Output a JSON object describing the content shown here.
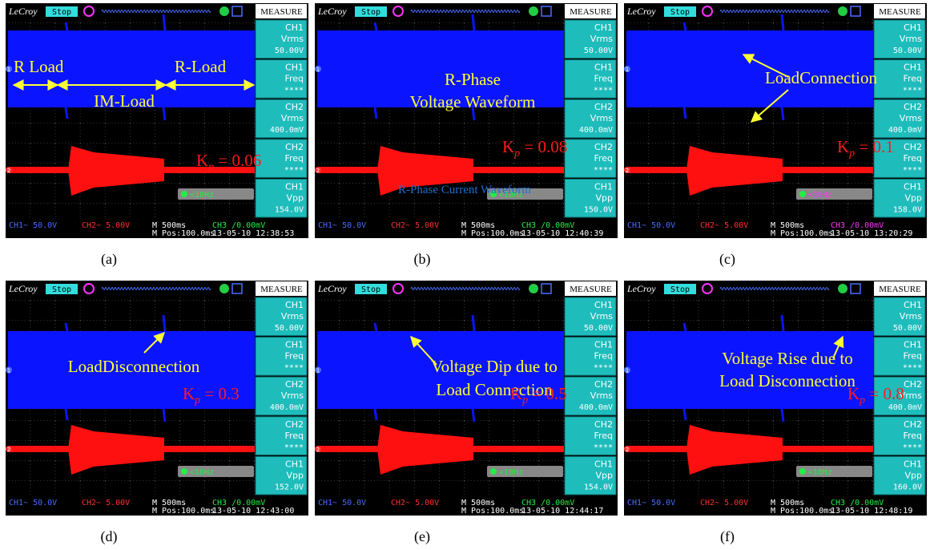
{
  "common": {
    "brand": "LeCroy",
    "status": "Stop",
    "menu": "MEASURE",
    "ch_markers": [
      "1",
      "2"
    ],
    "trigger": "<10Hz",
    "measure_labels": [
      [
        "CH1",
        "Vrms"
      ],
      [
        "CH1",
        "Freq"
      ],
      [
        "CH2",
        "Vrms"
      ],
      [
        "CH2",
        "Freq"
      ],
      [
        "CH1",
        "Vpp"
      ]
    ],
    "footer": {
      "ch1": "CH1~ 50.0V",
      "ch2": "CH2~ 5.00V",
      "timebase": "M 500ms",
      "position": "M Pos:100.0ms",
      "ch3": "CH3 /0.00mV"
    }
  },
  "panels": [
    {
      "caption": "(a)",
      "measures": [
        "50.00V",
        "****",
        "400.0mV",
        "****",
        "154.0V"
      ],
      "timestamp": "13-05-10 12:38:53",
      "labels": [
        "R Load",
        "IM-Load",
        "R-Load"
      ],
      "gain": {
        "k": "K",
        "sub": "p",
        "rest": " = 0.06"
      }
    },
    {
      "caption": "(b)",
      "measures": [
        "50.00V",
        "****",
        "400.0mV",
        "****",
        "150.0V"
      ],
      "timestamp": "13-05-10 12:40:39",
      "labels": [
        "R-Phase",
        "Voltage Waveform",
        "R-Phase Current Waveform"
      ],
      "gain": {
        "k": "K",
        "sub": "p",
        "rest": " = 0.08"
      }
    },
    {
      "caption": "(c)",
      "measures": [
        "50.00V",
        "****",
        "400.0mV",
        "****",
        "158.0V"
      ],
      "timestamp": "13-05-10 13:20:29",
      "labels": [
        "LoadConnection"
      ],
      "gain": {
        "k": "K",
        "sub": "p",
        "rest": " = 0.1"
      }
    },
    {
      "caption": "(d)",
      "measures": [
        "50.00V",
        "****",
        "400.0mV",
        "****",
        "152.0V"
      ],
      "timestamp": "13-05-10 12:43:00",
      "labels": [
        "LoadDisconnection"
      ],
      "gain": {
        "k": "K",
        "sub": "p",
        "rest": " = 0.3"
      }
    },
    {
      "caption": "(e)",
      "measures": [
        "50.00V",
        "****",
        "400.0mV",
        "****",
        "154.0V"
      ],
      "timestamp": "13-05-10 12:44:17",
      "labels": [
        "Voltage Dip due to",
        "Load Connection"
      ],
      "gain": {
        "k": "K",
        "sub": "p",
        "rest": " = 0.5"
      }
    },
    {
      "caption": "(f)",
      "measures": [
        "50.00V",
        "****",
        "400.0mV",
        "****",
        "160.0V"
      ],
      "timestamp": "13-05-10 12:48:19",
      "labels": [
        "Voltage Rise due to",
        "Load Disconnection"
      ],
      "gain": {
        "k": "K",
        "sub": "p",
        "rest": " = 0.8"
      }
    }
  ]
}
